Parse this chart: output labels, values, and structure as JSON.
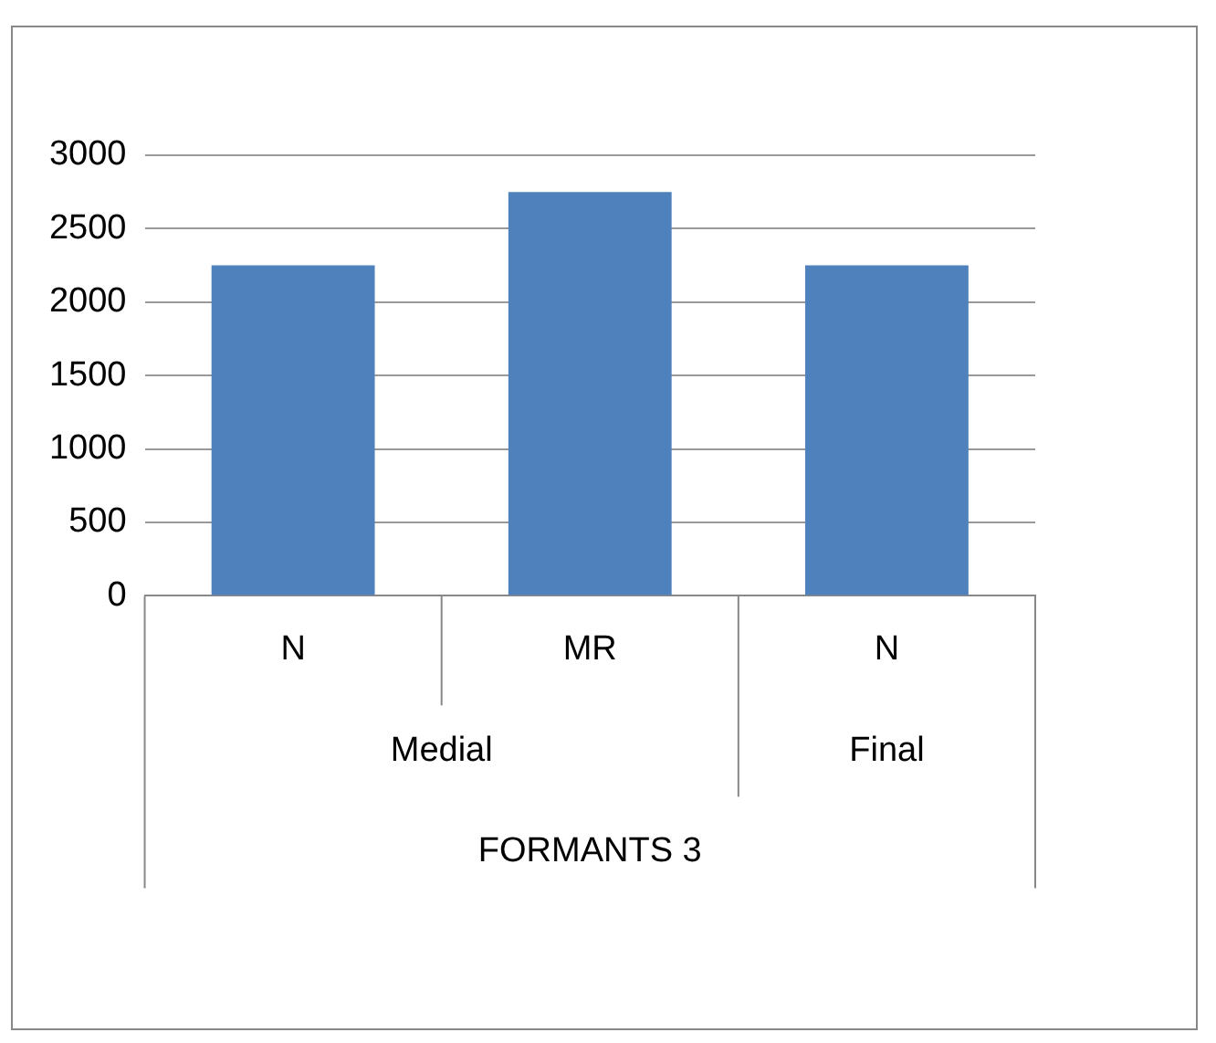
{
  "chart_data": {
    "type": "bar",
    "categories": [
      "N",
      "MR",
      "N"
    ],
    "values": [
      2250,
      2750,
      2250
    ],
    "color": "#4f81bd",
    "ylim": [
      0,
      3000
    ],
    "yticks": [
      0,
      500,
      1000,
      1500,
      2000,
      2500,
      3000
    ],
    "grid": "y",
    "xlabel": "FORMANTS 3",
    "annotations": [
      "Medial",
      "Final"
    ]
  }
}
